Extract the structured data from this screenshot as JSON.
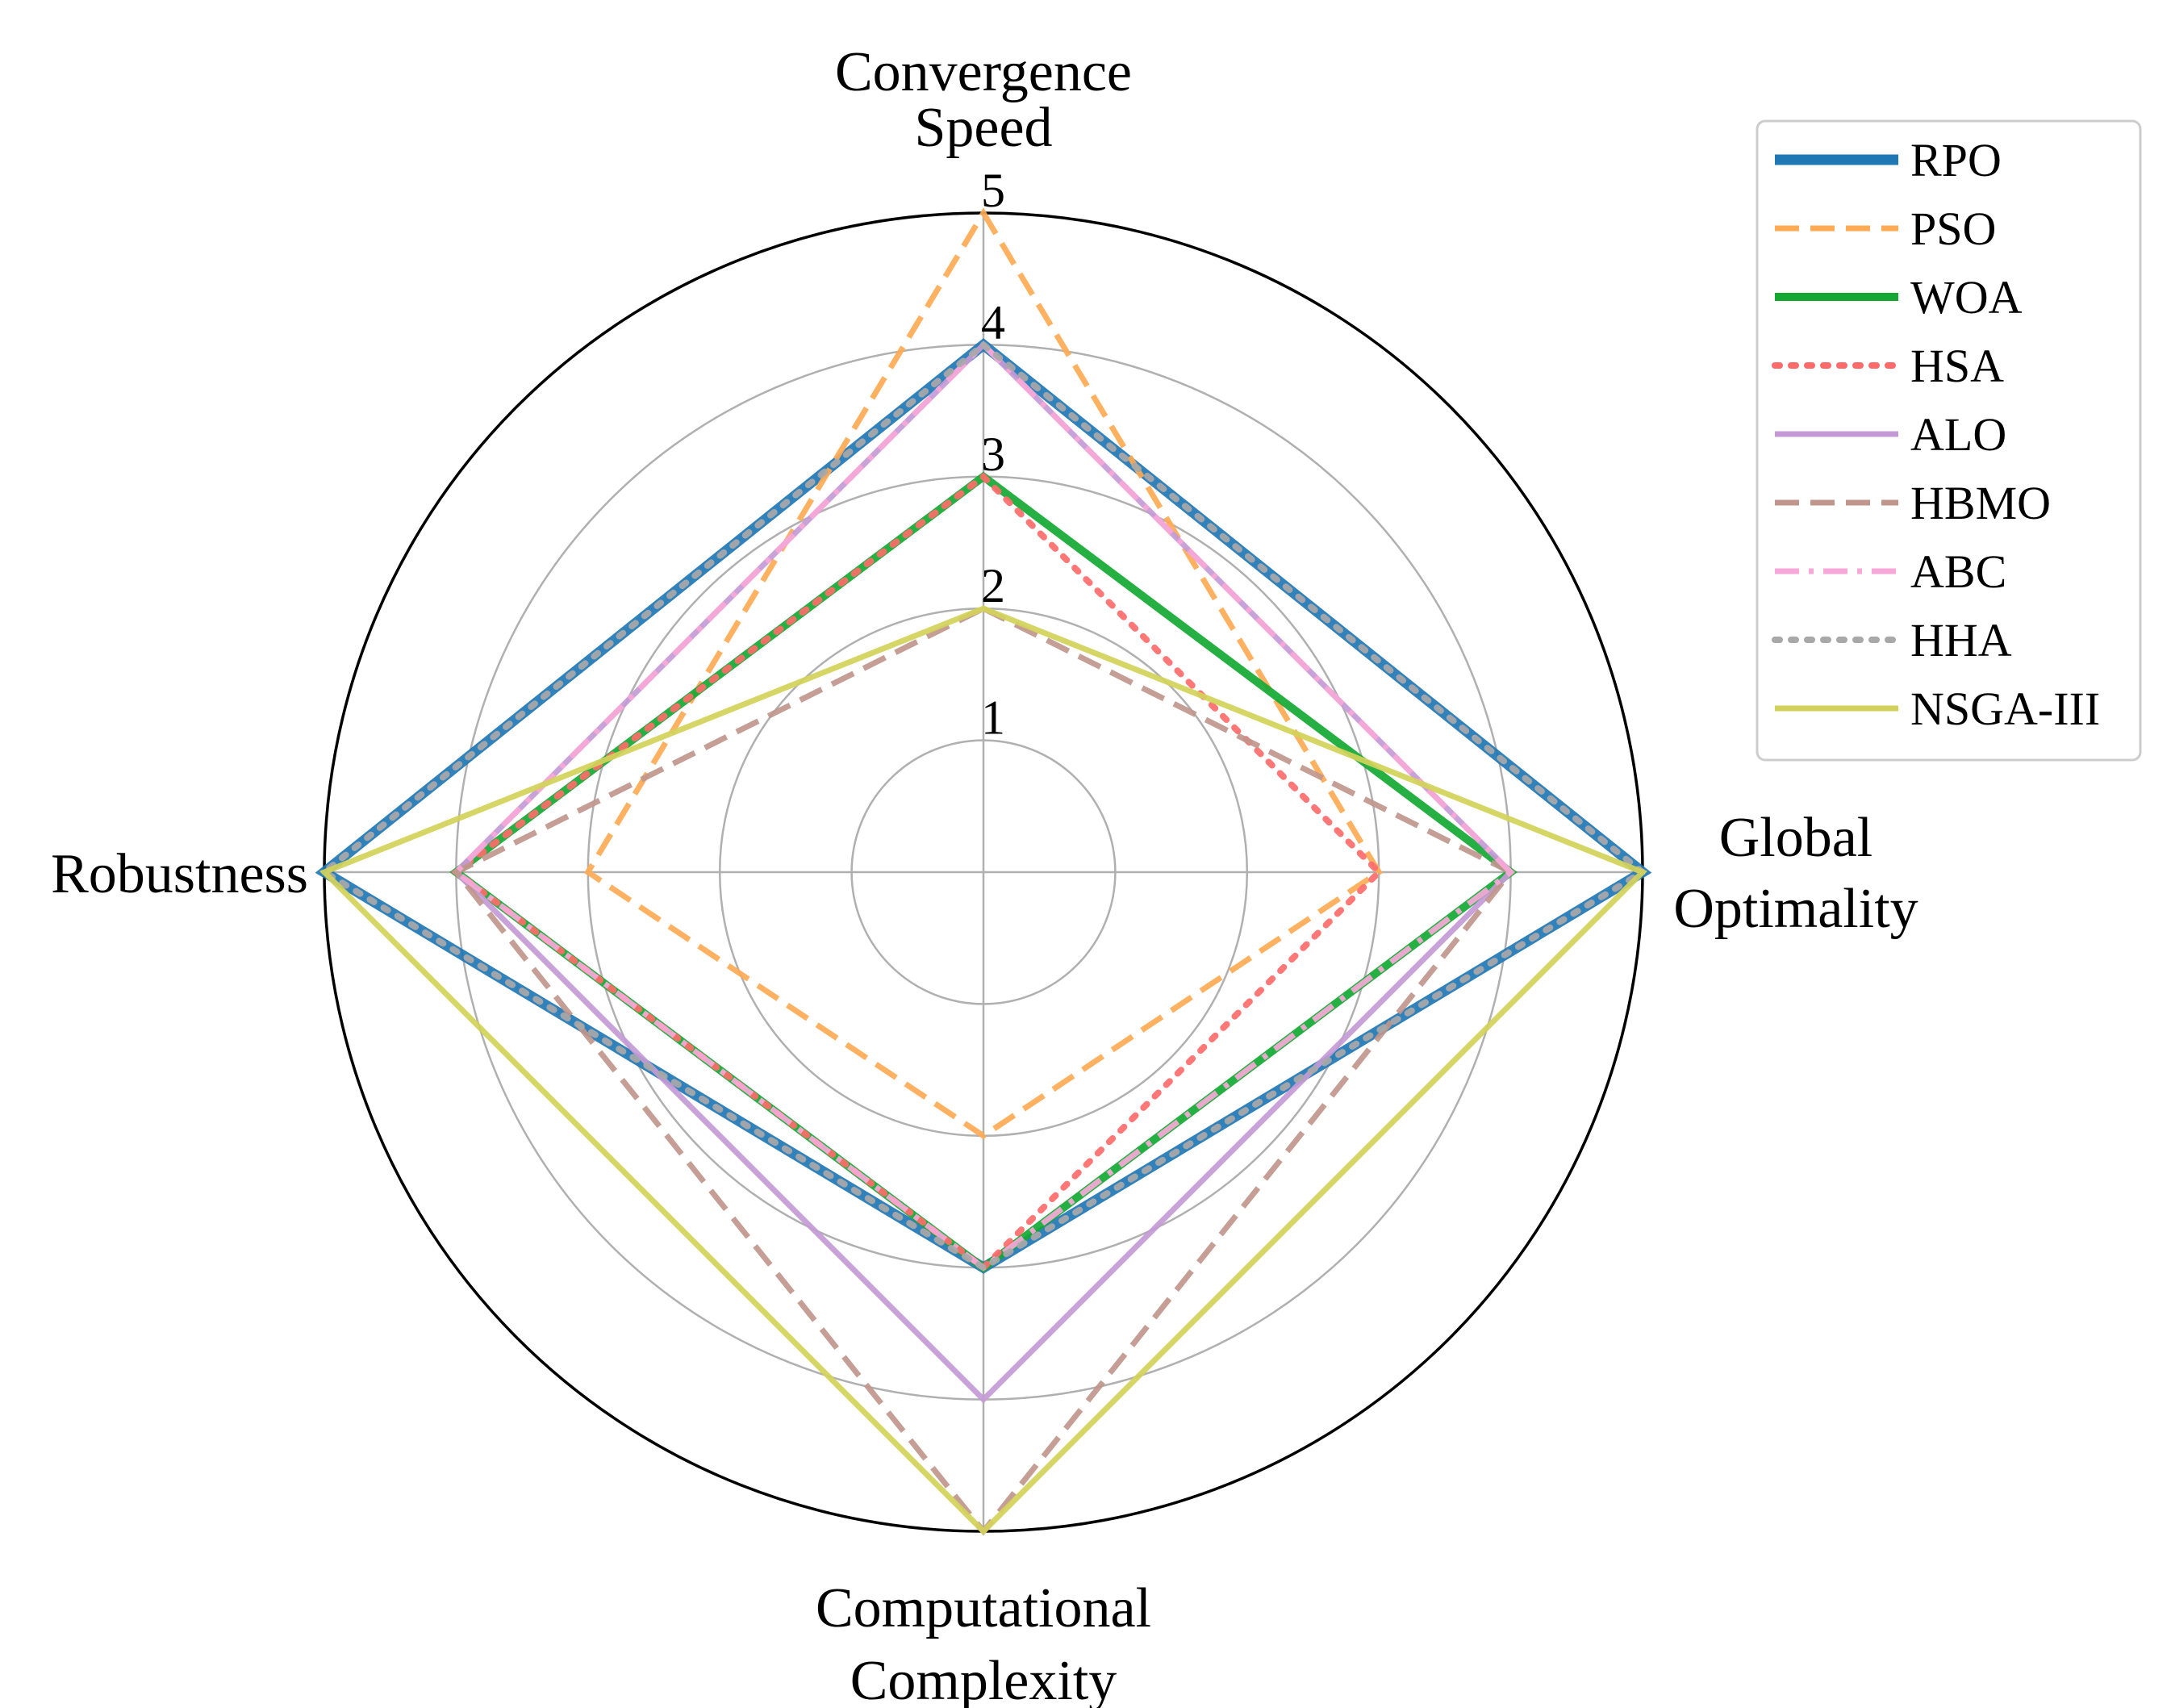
{
  "chart_data": {
    "type": "radar",
    "axes": [
      {
        "label_lines": [
          "Convergence",
          "Speed"
        ]
      },
      {
        "label_lines": [
          "Global",
          "Optimality"
        ]
      },
      {
        "label_lines": [
          "Computational",
          "Complexity"
        ]
      },
      {
        "label_lines": [
          "Robustness"
        ]
      }
    ],
    "rlim": [
      0,
      5
    ],
    "ticks": [
      "1",
      "2",
      "3",
      "4",
      "5"
    ],
    "grid": true,
    "legend_position": "top-right",
    "series": [
      {
        "name": "RPO",
        "values": [
          4,
          5,
          3,
          5
        ],
        "color": "#1f77b4",
        "style": "solid"
      },
      {
        "name": "PSO",
        "values": [
          5,
          3,
          2,
          3
        ],
        "color": "#ffaa55",
        "style": "dashed"
      },
      {
        "name": "WOA",
        "values": [
          3,
          4,
          3,
          4
        ],
        "color": "#14a832",
        "style": "solid"
      },
      {
        "name": "HSA",
        "values": [
          3,
          3,
          3,
          4
        ],
        "color": "#ff6b6b",
        "style": "dotted"
      },
      {
        "name": "ALO",
        "values": [
          4,
          4,
          4,
          4
        ],
        "color": "#c49ad6",
        "style": "solid"
      },
      {
        "name": "HBMO",
        "values": [
          2,
          4,
          5,
          4
        ],
        "color": "#c0968c",
        "style": "dashed"
      },
      {
        "name": "ABC",
        "values": [
          4,
          4,
          3,
          4
        ],
        "color": "#f7a8d8",
        "style": "dashdot"
      },
      {
        "name": "HHA",
        "values": [
          4,
          5,
          3,
          5
        ],
        "color": "#a8a8a8",
        "style": "dotted"
      },
      {
        "name": "NSGA-III",
        "values": [
          2,
          5,
          5,
          5
        ],
        "color": "#d2d25a",
        "style": "solid"
      }
    ]
  }
}
